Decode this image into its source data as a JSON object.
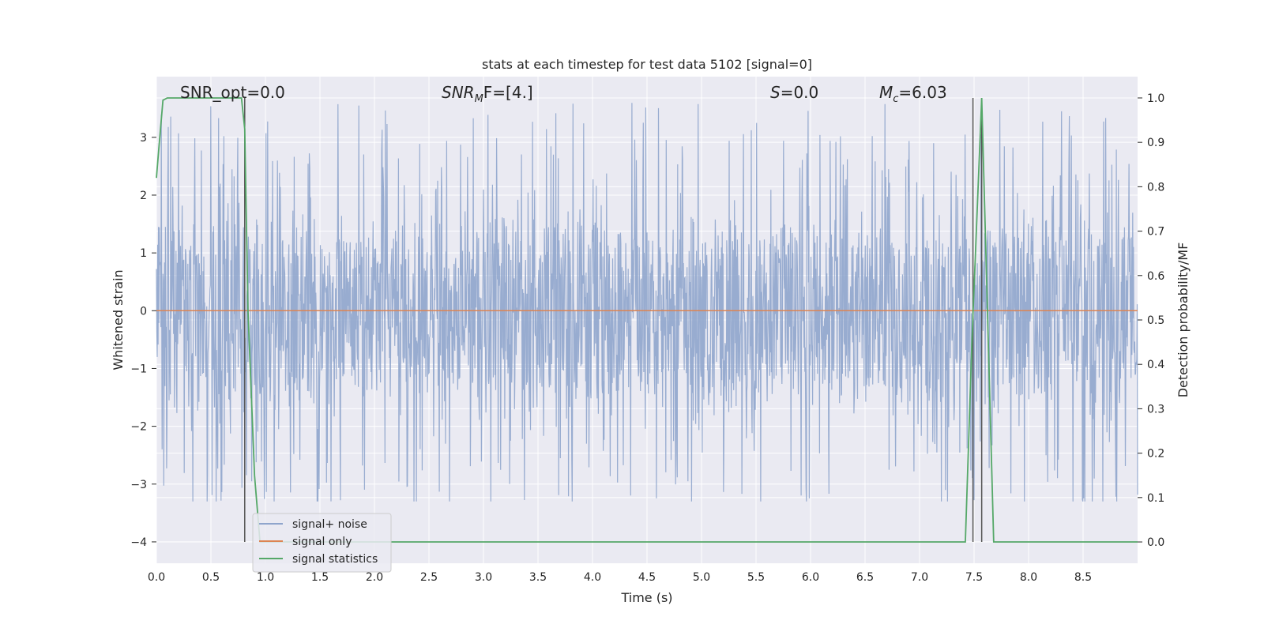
{
  "chart_data": {
    "type": "line",
    "title": "stats at each timestep for test data 5102 [signal=0]",
    "xlabel": "Time (s)",
    "ylabel": "Whitened strain",
    "ylabel_right": "Detection probability/MF",
    "xlim": [
      0,
      9.0
    ],
    "ylim": [
      -4.37,
      4.05
    ],
    "ylim_right": [
      -0.048,
      1.048
    ],
    "x_ticks": [
      "0.0",
      "0.5",
      "1.0",
      "1.5",
      "2.0",
      "2.5",
      "3.0",
      "3.5",
      "4.0",
      "4.5",
      "5.0",
      "5.5",
      "6.0",
      "6.5",
      "7.0",
      "7.5",
      "8.0",
      "8.5"
    ],
    "x_tick_values": [
      0,
      0.5,
      1.0,
      1.5,
      2.0,
      2.5,
      3.0,
      3.5,
      4.0,
      4.5,
      5.0,
      5.5,
      6.0,
      6.5,
      7.0,
      7.5,
      8.0,
      8.5
    ],
    "y_ticks": [
      "−4",
      "−3",
      "−2",
      "−1",
      "0",
      "1",
      "2",
      "3"
    ],
    "y_tick_values": [
      -4,
      -3,
      -2,
      -1,
      0,
      1,
      2,
      3
    ],
    "y_ticks_right": [
      "0.0",
      "0.1",
      "0.2",
      "0.3",
      "0.4",
      "0.5",
      "0.6",
      "0.7",
      "0.8",
      "0.9",
      "1.0"
    ],
    "y_tick_values_right": [
      0,
      0.1,
      0.2,
      0.3,
      0.4,
      0.5,
      0.6,
      0.7,
      0.8,
      0.9,
      1.0
    ],
    "grid": true,
    "legend_placement": "lower-left",
    "annotations": [
      {
        "id": "snr-opt",
        "text": "SNR_opt=0.0",
        "italic_prefix": ""
      },
      {
        "id": "snr-mf",
        "text": "F=[4.]",
        "italic_prefix": "SNR",
        "subscript": "M"
      },
      {
        "id": "s-stat",
        "text": "=0.0",
        "italic_prefix": "S"
      },
      {
        "id": "mc",
        "text": "=6.03",
        "italic_prefix": "M",
        "subscript": "c"
      }
    ],
    "series": [
      {
        "name": "signal+ noise",
        "color": "#8fa5cc",
        "description_axis": "left",
        "noise_envelope": {
          "typical_upper": 1.3,
          "typical_lower": -1.3,
          "max_peak": 3.6,
          "min_peak": -3.3
        }
      },
      {
        "name": "signal only",
        "color": "#dd8452",
        "axis": "left",
        "x": [
          0,
          9.0
        ],
        "y": [
          0,
          0
        ]
      },
      {
        "name": "signal statistics",
        "color": "#55a868",
        "axis": "right",
        "x": [
          0.0,
          0.02,
          0.06,
          0.1,
          0.2,
          0.5,
          0.78,
          0.81,
          0.84,
          0.9,
          0.95,
          7.42,
          7.48,
          7.57,
          7.68,
          9.0
        ],
        "y": [
          0.82,
          0.88,
          0.995,
          1.0,
          1.0,
          1.0,
          1.0,
          0.93,
          0.52,
          0.15,
          0.0,
          0.0,
          0.45,
          1.0,
          0.0,
          0.0
        ]
      }
    ],
    "vertical_lines": [
      {
        "x": 0.81,
        "ymin_right": 0.0,
        "ymax_right": 1.0,
        "color": "#555555"
      },
      {
        "x": 7.49,
        "ymin_right": 0.0,
        "ymax_right": 1.0,
        "color": "#555555"
      },
      {
        "x": 7.57,
        "ymin_right": 0.0,
        "ymax_right": 1.0,
        "color": "#555555"
      }
    ]
  }
}
